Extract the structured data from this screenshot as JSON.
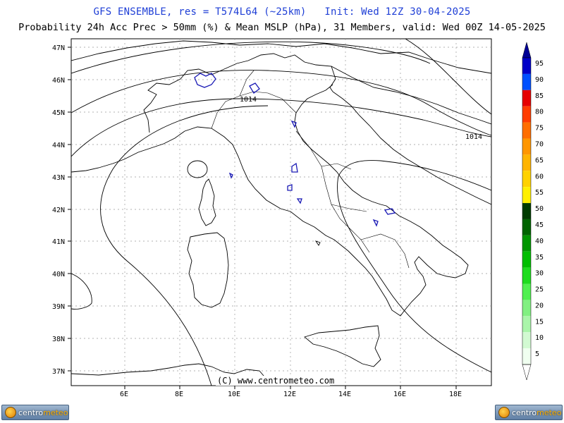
{
  "header": {
    "title_line1": "GFS ENSEMBLE, res = T574L64 (~25km)   Init: Wed 12Z 30-04-2025",
    "title_line2": "Probability 24h Acc Prec > 50mm (%) & Mean MSLP (hPa), 31 Members, valid: Wed 00Z 14-05-2025"
  },
  "map": {
    "lat_labels": [
      "47N",
      "46N",
      "45N",
      "44N",
      "43N",
      "42N",
      "41N",
      "40N",
      "39N",
      "38N",
      "37N"
    ],
    "lon_labels": [
      "6E",
      "8E",
      "10E",
      "12E",
      "14E",
      "16E",
      "18E"
    ],
    "isobar_labels": [
      "1014",
      "1014"
    ],
    "copyright": "(C) www.centrometeo.com"
  },
  "legend": {
    "labels": [
      "95",
      "90",
      "85",
      "80",
      "75",
      "70",
      "65",
      "60",
      "55",
      "50",
      "45",
      "40",
      "35",
      "30",
      "25",
      "20",
      "15",
      "10",
      "5"
    ],
    "colors": [
      "#000096",
      "#0000c8",
      "#0050ff",
      "#e60000",
      "#ff3c00",
      "#ff6e00",
      "#ff9600",
      "#ffb400",
      "#ffd200",
      "#fff000",
      "#003c00",
      "#006400",
      "#009600",
      "#00be00",
      "#1edc1e",
      "#50f050",
      "#82f082",
      "#aaf5aa",
      "#d2fad2",
      "#f0fff0"
    ]
  },
  "footer": {
    "logo_left_text_a": "centro",
    "logo_left_text_b": "meteo",
    "logo_right_text_a": "centro",
    "logo_right_text_b": "meteo"
  }
}
